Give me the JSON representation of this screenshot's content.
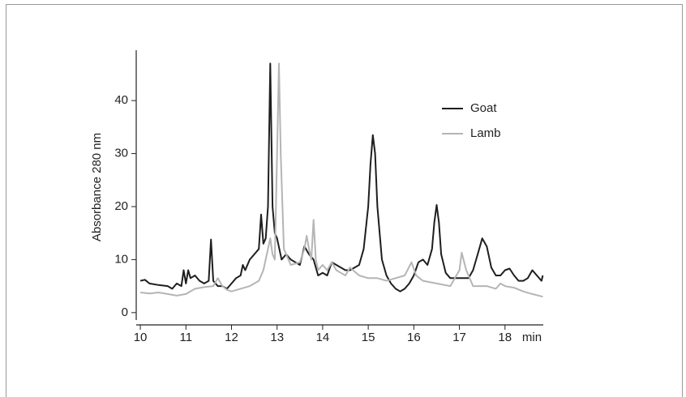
{
  "chart_data": {
    "type": "line",
    "y_label": "Absorbance 280 nm",
    "x_label": "min",
    "xlim": [
      9.91,
      18.84
    ],
    "ylim": [
      -1.4,
      49.5
    ],
    "xticks": [
      10,
      11,
      12,
      13,
      14,
      15,
      16,
      17,
      18
    ],
    "yticks": [
      0,
      10,
      20,
      30,
      40
    ],
    "grid": false,
    "legend": "upper right",
    "series": [
      {
        "name": "Goat",
        "color": "#1e1e1e",
        "x": [
          10.0,
          10.1,
          10.2,
          10.4,
          10.6,
          10.7,
          10.8,
          10.9,
          10.95,
          11.0,
          11.05,
          11.1,
          11.2,
          11.3,
          11.4,
          11.5,
          11.55,
          11.6,
          11.7,
          11.8,
          11.9,
          12.0,
          12.1,
          12.2,
          12.25,
          12.3,
          12.4,
          12.5,
          12.6,
          12.65,
          12.7,
          12.75,
          12.8,
          12.85,
          12.9,
          12.95,
          13.0,
          13.05,
          13.1,
          13.2,
          13.3,
          13.4,
          13.5,
          13.6,
          13.7,
          13.8,
          13.9,
          14.0,
          14.1,
          14.2,
          14.3,
          14.4,
          14.5,
          14.6,
          14.7,
          14.8,
          14.9,
          15.0,
          15.05,
          15.1,
          15.15,
          15.2,
          15.3,
          15.4,
          15.5,
          15.6,
          15.7,
          15.8,
          15.9,
          16.0,
          16.1,
          16.2,
          16.3,
          16.4,
          16.45,
          16.5,
          16.55,
          16.6,
          16.7,
          16.8,
          16.9,
          17.0,
          17.1,
          17.2,
          17.3,
          17.4,
          17.5,
          17.6,
          17.7,
          17.8,
          17.9,
          18.0,
          18.1,
          18.2,
          18.3,
          18.4,
          18.5,
          18.6,
          18.7,
          18.8,
          18.83
        ],
        "values": [
          6,
          6.2,
          5.5,
          5.2,
          5,
          4.5,
          5.5,
          5,
          8,
          5.5,
          8,
          6.5,
          7,
          6,
          5.5,
          6,
          13.8,
          6,
          5,
          5,
          4.5,
          5.5,
          6.5,
          7,
          9,
          8,
          10,
          11,
          12,
          18.5,
          13,
          14,
          20,
          47,
          20,
          15,
          14,
          12,
          10,
          11,
          10,
          9.5,
          9,
          12.5,
          11,
          10,
          7,
          7.5,
          7,
          9.5,
          9,
          8.5,
          8,
          8,
          8.5,
          9,
          12,
          20,
          28,
          33.5,
          30,
          20,
          10,
          7,
          5.5,
          4.5,
          4,
          4.5,
          5.5,
          7,
          9.5,
          10,
          9,
          12,
          17,
          20.3,
          17,
          11,
          7.5,
          6.5,
          6.5,
          6.5,
          6.5,
          6.5,
          8,
          11,
          14,
          12.5,
          8.5,
          7,
          7,
          8,
          8.3,
          7,
          6,
          6,
          6.5,
          8,
          7,
          6,
          7
        ]
      },
      {
        "name": "Lamb",
        "color": "#b5b5b5",
        "x": [
          10.0,
          10.2,
          10.4,
          10.6,
          10.8,
          11.0,
          11.2,
          11.4,
          11.6,
          11.7,
          11.8,
          11.9,
          12.0,
          12.2,
          12.4,
          12.6,
          12.7,
          12.8,
          12.85,
          12.9,
          12.95,
          13.0,
          13.04,
          13.08,
          13.15,
          13.3,
          13.5,
          13.6,
          13.65,
          13.7,
          13.75,
          13.8,
          13.85,
          13.9,
          14.0,
          14.1,
          14.2,
          14.3,
          14.4,
          14.5,
          14.6,
          14.8,
          15.0,
          15.2,
          15.4,
          15.6,
          15.8,
          15.95,
          16.05,
          16.2,
          16.5,
          16.8,
          17.0,
          17.05,
          17.15,
          17.3,
          17.6,
          17.8,
          17.9,
          18.0,
          18.2,
          18.4,
          18.6,
          18.83
        ],
        "values": [
          3.8,
          3.6,
          3.8,
          3.5,
          3.2,
          3.5,
          4.5,
          4.8,
          5,
          6.5,
          5,
          4.3,
          4,
          4.5,
          5,
          6,
          8,
          12,
          14,
          11,
          10,
          30,
          47,
          30,
          12,
          9,
          9.5,
          12,
          14.5,
          12,
          10,
          17.5,
          10,
          8,
          9,
          8,
          9.5,
          8,
          7.5,
          7,
          8.5,
          7,
          6.5,
          6.5,
          6,
          6.5,
          7,
          9.5,
          7,
          6,
          5.5,
          5,
          8,
          11.3,
          8,
          5,
          5,
          4.5,
          5.5,
          5,
          4.7,
          4,
          3.5,
          3
        ]
      }
    ]
  }
}
